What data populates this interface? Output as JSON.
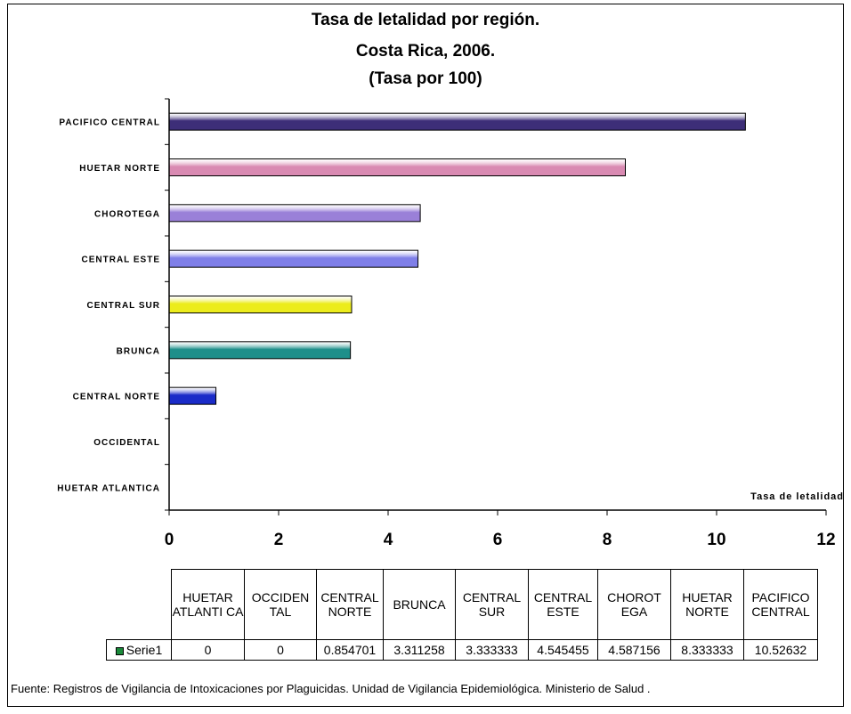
{
  "chart_data": {
    "type": "bar",
    "orientation": "horizontal",
    "title": [
      "Tasa de letalidad por región.",
      "Costa Rica, 2006.",
      "(Tasa por 100)"
    ],
    "xlabel": "Tasa de letalidad",
    "categories": [
      "HUETAR ATLANTICA",
      "OCCIDENTAL",
      "CENTRAL NORTE",
      "BRUNCA",
      "CENTRAL SUR",
      "CENTRAL ESTE",
      "CHOROTEGA",
      "HUETAR NORTE",
      "PACIFICO CENTRAL"
    ],
    "series": [
      {
        "name": "Serie1",
        "values": [
          0,
          0,
          0.854701,
          3.311258,
          3.333333,
          4.545455,
          4.587156,
          8.333333,
          10.52632
        ],
        "value_labels": [
          "0",
          "0",
          "0.854701",
          "3.311258",
          "3.333333",
          "4.545455",
          "4.587156",
          "8.333333",
          "10.52632"
        ]
      }
    ],
    "bar_colors": [
      "#3a2e9a",
      "#3a2e9a",
      "#1a2bc8",
      "#1e8f8a",
      "#ecec1c",
      "#7f7fe8",
      "#9a80d8",
      "#d98ab2",
      "#3d2e78"
    ],
    "xlim": [
      0,
      12
    ],
    "xticks": [
      "0",
      "2",
      "4",
      "6",
      "8",
      "10",
      "12"
    ],
    "grid": false,
    "legend": "in data table",
    "table_headers": [
      "HUETAR ATLANTI CA",
      "OCCIDEN TAL",
      "CENTRAL NORTE",
      "BRUNCA",
      "CENTRAL SUR",
      "CENTRAL ESTE",
      "CHOROT EGA",
      "HUETAR NORTE",
      "PACIFICO CENTRAL"
    ]
  },
  "source_note": "Fuente: Registros de Vigilancia de Intoxicaciones por Plaguicidas.   Unidad de Vigilancia Epidemiológica. Ministerio de Salud ."
}
